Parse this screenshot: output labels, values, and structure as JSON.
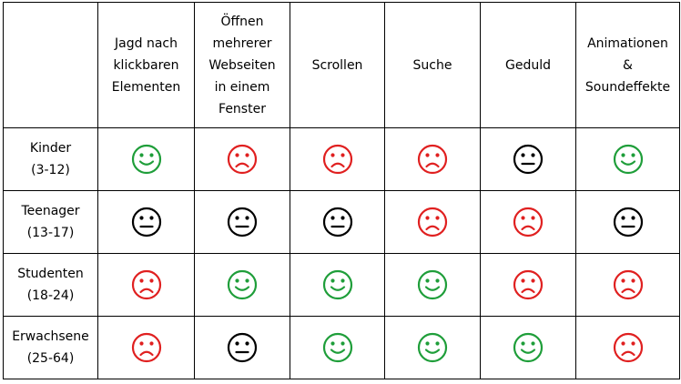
{
  "columns": [
    "",
    "Jagd nach\nklickbaren\nElementen",
    "Öffnen\nmehrerer\nWebseiten\nin einem\nFenster",
    "Scrollen",
    "Suche",
    "Geduld",
    "Animationen\n&\nSoundeffekte"
  ],
  "rows": [
    {
      "label": "Kinder\n(3-12)",
      "ratings": [
        "happy",
        "sad",
        "sad",
        "sad",
        "neutral",
        "happy"
      ]
    },
    {
      "label": "Teenager\n(13-17)",
      "ratings": [
        "neutral",
        "neutral",
        "neutral",
        "sad",
        "sad",
        "neutral"
      ]
    },
    {
      "label": "Studenten\n(18-24)",
      "ratings": [
        "sad",
        "happy",
        "happy",
        "happy",
        "sad",
        "sad"
      ]
    },
    {
      "label": "Erwachsene\n(25-64)",
      "ratings": [
        "sad",
        "neutral",
        "happy",
        "happy",
        "happy",
        "sad"
      ]
    }
  ],
  "icons": {
    "happy": {
      "name": "smiley-happy-icon",
      "color": "#1f9e3a"
    },
    "sad": {
      "name": "smiley-sad-icon",
      "color": "#e02020"
    },
    "neutral": {
      "name": "smiley-neutral-icon",
      "color": "#000000"
    }
  }
}
